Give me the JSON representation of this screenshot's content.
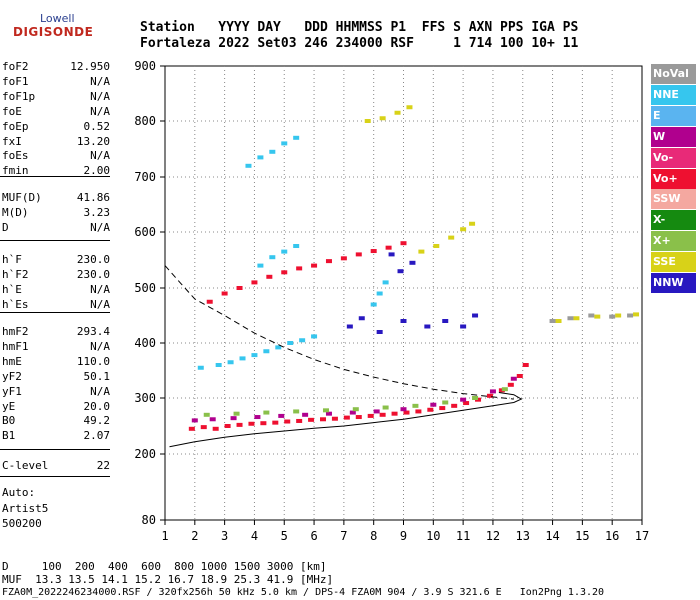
{
  "logo": {
    "top": "Lowell",
    "main": "DIGISONDE"
  },
  "header": {
    "line1": "Station   YYYY DAY   DDD HHMMSS P1  FFS S AXN PPS IGA PS",
    "line2": "Fortaleza 2022 Set03 246 234000 RSF     1 714 100 10+ 11"
  },
  "params_group1": [
    {
      "name": "foF2",
      "value": "12.950"
    },
    {
      "name": "foF1",
      "value": "N/A"
    },
    {
      "name": "foF1p",
      "value": "N/A"
    },
    {
      "name": "foE",
      "value": "N/A"
    },
    {
      "name": "foEp",
      "value": "0.52"
    },
    {
      "name": "fxI",
      "value": "13.20"
    },
    {
      "name": "foEs",
      "value": "N/A"
    },
    {
      "name": "fmin",
      "value": "2.00"
    }
  ],
  "params_group2": [
    {
      "name": "MUF(D)",
      "value": "41.86"
    },
    {
      "name": "M(D)",
      "value": "3.23"
    },
    {
      "name": "D",
      "value": "N/A"
    }
  ],
  "params_group3": [
    {
      "name": "h`F",
      "value": "230.0"
    },
    {
      "name": "h`F2",
      "value": "230.0"
    },
    {
      "name": "h`E",
      "value": "N/A"
    },
    {
      "name": "h`Es",
      "value": "N/A"
    }
  ],
  "params_group4": [
    {
      "name": "hmF2",
      "value": "293.4"
    },
    {
      "name": "hmF1",
      "value": "N/A"
    },
    {
      "name": "hmE",
      "value": "110.0"
    },
    {
      "name": "yF2",
      "value": "50.1"
    },
    {
      "name": "yF1",
      "value": "N/A"
    },
    {
      "name": "yE",
      "value": "20.0"
    },
    {
      "name": "B0",
      "value": "49.2"
    },
    {
      "name": "B1",
      "value": "2.07"
    }
  ],
  "params_group5": [
    {
      "name": "C-level",
      "value": "22"
    }
  ],
  "auto": {
    "line1": "Auto:",
    "line2": "Artist5",
    "line3": "500200"
  },
  "legend": [
    {
      "label": "NoVal",
      "color": "#9a9a9a"
    },
    {
      "label": "NNE",
      "color": "#36c6ee"
    },
    {
      "label": "E",
      "color": "#5ab4f0"
    },
    {
      "label": "W",
      "color": "#b0008e"
    },
    {
      "label": "Vo-",
      "color": "#e82a78"
    },
    {
      "label": "Vo+",
      "color": "#ee1030"
    },
    {
      "label": "SSW",
      "color": "#f4a8a0"
    },
    {
      "label": "X-",
      "color": "#158a10"
    },
    {
      "label": "X+",
      "color": "#8ac04a"
    },
    {
      "label": "SSE",
      "color": "#d8d218"
    },
    {
      "label": "NNW",
      "color": "#2818c0"
    }
  ],
  "bottom": {
    "line1": "D     100  200  400  600  800 1000 1500 3000 [km]",
    "line2": "MUF  13.3 13.5 14.1 15.2 16.7 18.9 25.3 41.9 [MHz]",
    "line3": "FZA0M_2022246234000.RSF / 320fx256h 50 kHz 5.0 km / DPS-4 FZA0M 904 / 3.9 S 321.6 E   Ion2Png 1.3.20"
  },
  "chart_data": {
    "type": "scatter",
    "title": "",
    "xlabel": "",
    "ylabel": "",
    "xlim": [
      1,
      17
    ],
    "ylim": [
      80,
      900
    ],
    "x_ticks": [
      1,
      2,
      3,
      4,
      5,
      6,
      7,
      8,
      9,
      10,
      11,
      12,
      13,
      14,
      15,
      16,
      17
    ],
    "y_ticks": [
      80,
      200,
      300,
      400,
      500,
      600,
      700,
      800,
      900
    ],
    "grid": "dotted",
    "legend_placement": "right",
    "series": [
      {
        "name": "Vo+",
        "color": "#ee1030",
        "points": [
          [
            1.9,
            245
          ],
          [
            2.3,
            248
          ],
          [
            2.7,
            245
          ],
          [
            3.1,
            250
          ],
          [
            3.5,
            252
          ],
          [
            3.9,
            254
          ],
          [
            4.3,
            255
          ],
          [
            4.7,
            256
          ],
          [
            5.1,
            258
          ],
          [
            5.5,
            259
          ],
          [
            5.9,
            261
          ],
          [
            6.3,
            262
          ],
          [
            6.7,
            263
          ],
          [
            7.1,
            265
          ],
          [
            7.5,
            266
          ],
          [
            7.9,
            268
          ],
          [
            8.3,
            270
          ],
          [
            8.7,
            272
          ],
          [
            9.1,
            274
          ],
          [
            9.5,
            276
          ],
          [
            9.9,
            279
          ],
          [
            10.3,
            282
          ],
          [
            10.7,
            286
          ],
          [
            11.1,
            291
          ],
          [
            11.5,
            297
          ],
          [
            11.9,
            304
          ],
          [
            12.3,
            314
          ],
          [
            12.6,
            324
          ],
          [
            12.9,
            340
          ],
          [
            13.1,
            360
          ],
          [
            2.5,
            475
          ],
          [
            3.0,
            490
          ],
          [
            3.5,
            500
          ],
          [
            4.0,
            510
          ],
          [
            4.5,
            520
          ],
          [
            5.0,
            528
          ],
          [
            5.5,
            535
          ],
          [
            6.0,
            540
          ],
          [
            6.5,
            548
          ],
          [
            7.0,
            553
          ],
          [
            7.5,
            560
          ],
          [
            8.0,
            566
          ],
          [
            8.5,
            572
          ],
          [
            9.0,
            580
          ]
        ]
      },
      {
        "name": "NNE",
        "color": "#36c6ee",
        "points": [
          [
            2.2,
            355
          ],
          [
            2.8,
            360
          ],
          [
            3.2,
            365
          ],
          [
            3.6,
            372
          ],
          [
            4.0,
            378
          ],
          [
            4.4,
            385
          ],
          [
            4.8,
            392
          ],
          [
            5.2,
            400
          ],
          [
            5.6,
            405
          ],
          [
            6.0,
            412
          ],
          [
            4.2,
            540
          ],
          [
            4.6,
            555
          ],
          [
            5.0,
            565
          ],
          [
            5.4,
            575
          ],
          [
            3.8,
            720
          ],
          [
            4.2,
            735
          ],
          [
            4.6,
            745
          ],
          [
            5.0,
            760
          ],
          [
            5.4,
            770
          ],
          [
            8.0,
            470
          ],
          [
            8.2,
            490
          ],
          [
            8.4,
            510
          ]
        ]
      },
      {
        "name": "W",
        "color": "#b0008e",
        "points": [
          [
            2.0,
            260
          ],
          [
            2.6,
            262
          ],
          [
            3.3,
            264
          ],
          [
            4.1,
            266
          ],
          [
            4.9,
            268
          ],
          [
            5.7,
            270
          ],
          [
            6.5,
            272
          ],
          [
            7.3,
            274
          ],
          [
            8.1,
            276
          ],
          [
            9.0,
            280
          ],
          [
            10.0,
            288
          ],
          [
            11.0,
            297
          ],
          [
            12.0,
            312
          ],
          [
            12.7,
            335
          ]
        ]
      },
      {
        "name": "NNW",
        "color": "#2818c0",
        "points": [
          [
            7.2,
            430
          ],
          [
            7.6,
            445
          ],
          [
            8.2,
            420
          ],
          [
            8.6,
            560
          ],
          [
            9.0,
            440
          ],
          [
            9.8,
            430
          ],
          [
            10.4,
            440
          ],
          [
            11.0,
            430
          ],
          [
            11.4,
            450
          ],
          [
            8.9,
            530
          ],
          [
            9.3,
            545
          ]
        ]
      },
      {
        "name": "SSE",
        "color": "#d8d218",
        "points": [
          [
            9.6,
            565
          ],
          [
            10.1,
            575
          ],
          [
            10.6,
            590
          ],
          [
            11.0,
            605
          ],
          [
            11.3,
            615
          ],
          [
            7.8,
            800
          ],
          [
            8.3,
            805
          ],
          [
            8.8,
            815
          ],
          [
            9.2,
            825
          ],
          [
            14.2,
            440
          ],
          [
            14.8,
            445
          ],
          [
            15.5,
            448
          ],
          [
            16.2,
            450
          ],
          [
            16.8,
            452
          ]
        ]
      },
      {
        "name": "X+",
        "color": "#8ac04a",
        "points": [
          [
            2.4,
            270
          ],
          [
            3.4,
            272
          ],
          [
            4.4,
            274
          ],
          [
            5.4,
            276
          ],
          [
            6.4,
            278
          ],
          [
            7.4,
            280
          ],
          [
            8.4,
            283
          ],
          [
            9.4,
            286
          ],
          [
            10.4,
            292
          ],
          [
            11.4,
            300
          ],
          [
            12.4,
            316
          ]
        ]
      },
      {
        "name": "NoVal",
        "color": "#9a9a9a",
        "points": [
          [
            14.0,
            440
          ],
          [
            14.6,
            445
          ],
          [
            15.3,
            450
          ],
          [
            16.0,
            448
          ],
          [
            16.6,
            450
          ]
        ]
      }
    ],
    "curves": [
      {
        "name": "profile-solid",
        "style": "solid",
        "points": [
          [
            1.15,
            213
          ],
          [
            2,
            222
          ],
          [
            3,
            230
          ],
          [
            4,
            236
          ],
          [
            5,
            241
          ],
          [
            6,
            246
          ],
          [
            7,
            250
          ],
          [
            8,
            256
          ],
          [
            9,
            262
          ],
          [
            10,
            270
          ],
          [
            11,
            278
          ],
          [
            12,
            286
          ],
          [
            12.7,
            292
          ],
          [
            12.95,
            298
          ],
          [
            12.7,
            306
          ],
          [
            12.2,
            310
          ]
        ]
      },
      {
        "name": "muf-dashed",
        "style": "dashed",
        "points": [
          [
            1.0,
            540
          ],
          [
            1.5,
            510
          ],
          [
            2,
            480
          ],
          [
            3,
            450
          ],
          [
            4,
            418
          ],
          [
            5,
            392
          ],
          [
            6,
            370
          ],
          [
            7,
            352
          ],
          [
            8,
            338
          ],
          [
            9,
            326
          ],
          [
            10,
            316
          ],
          [
            11,
            308
          ],
          [
            12,
            302
          ],
          [
            12.7,
            298
          ]
        ]
      }
    ]
  }
}
